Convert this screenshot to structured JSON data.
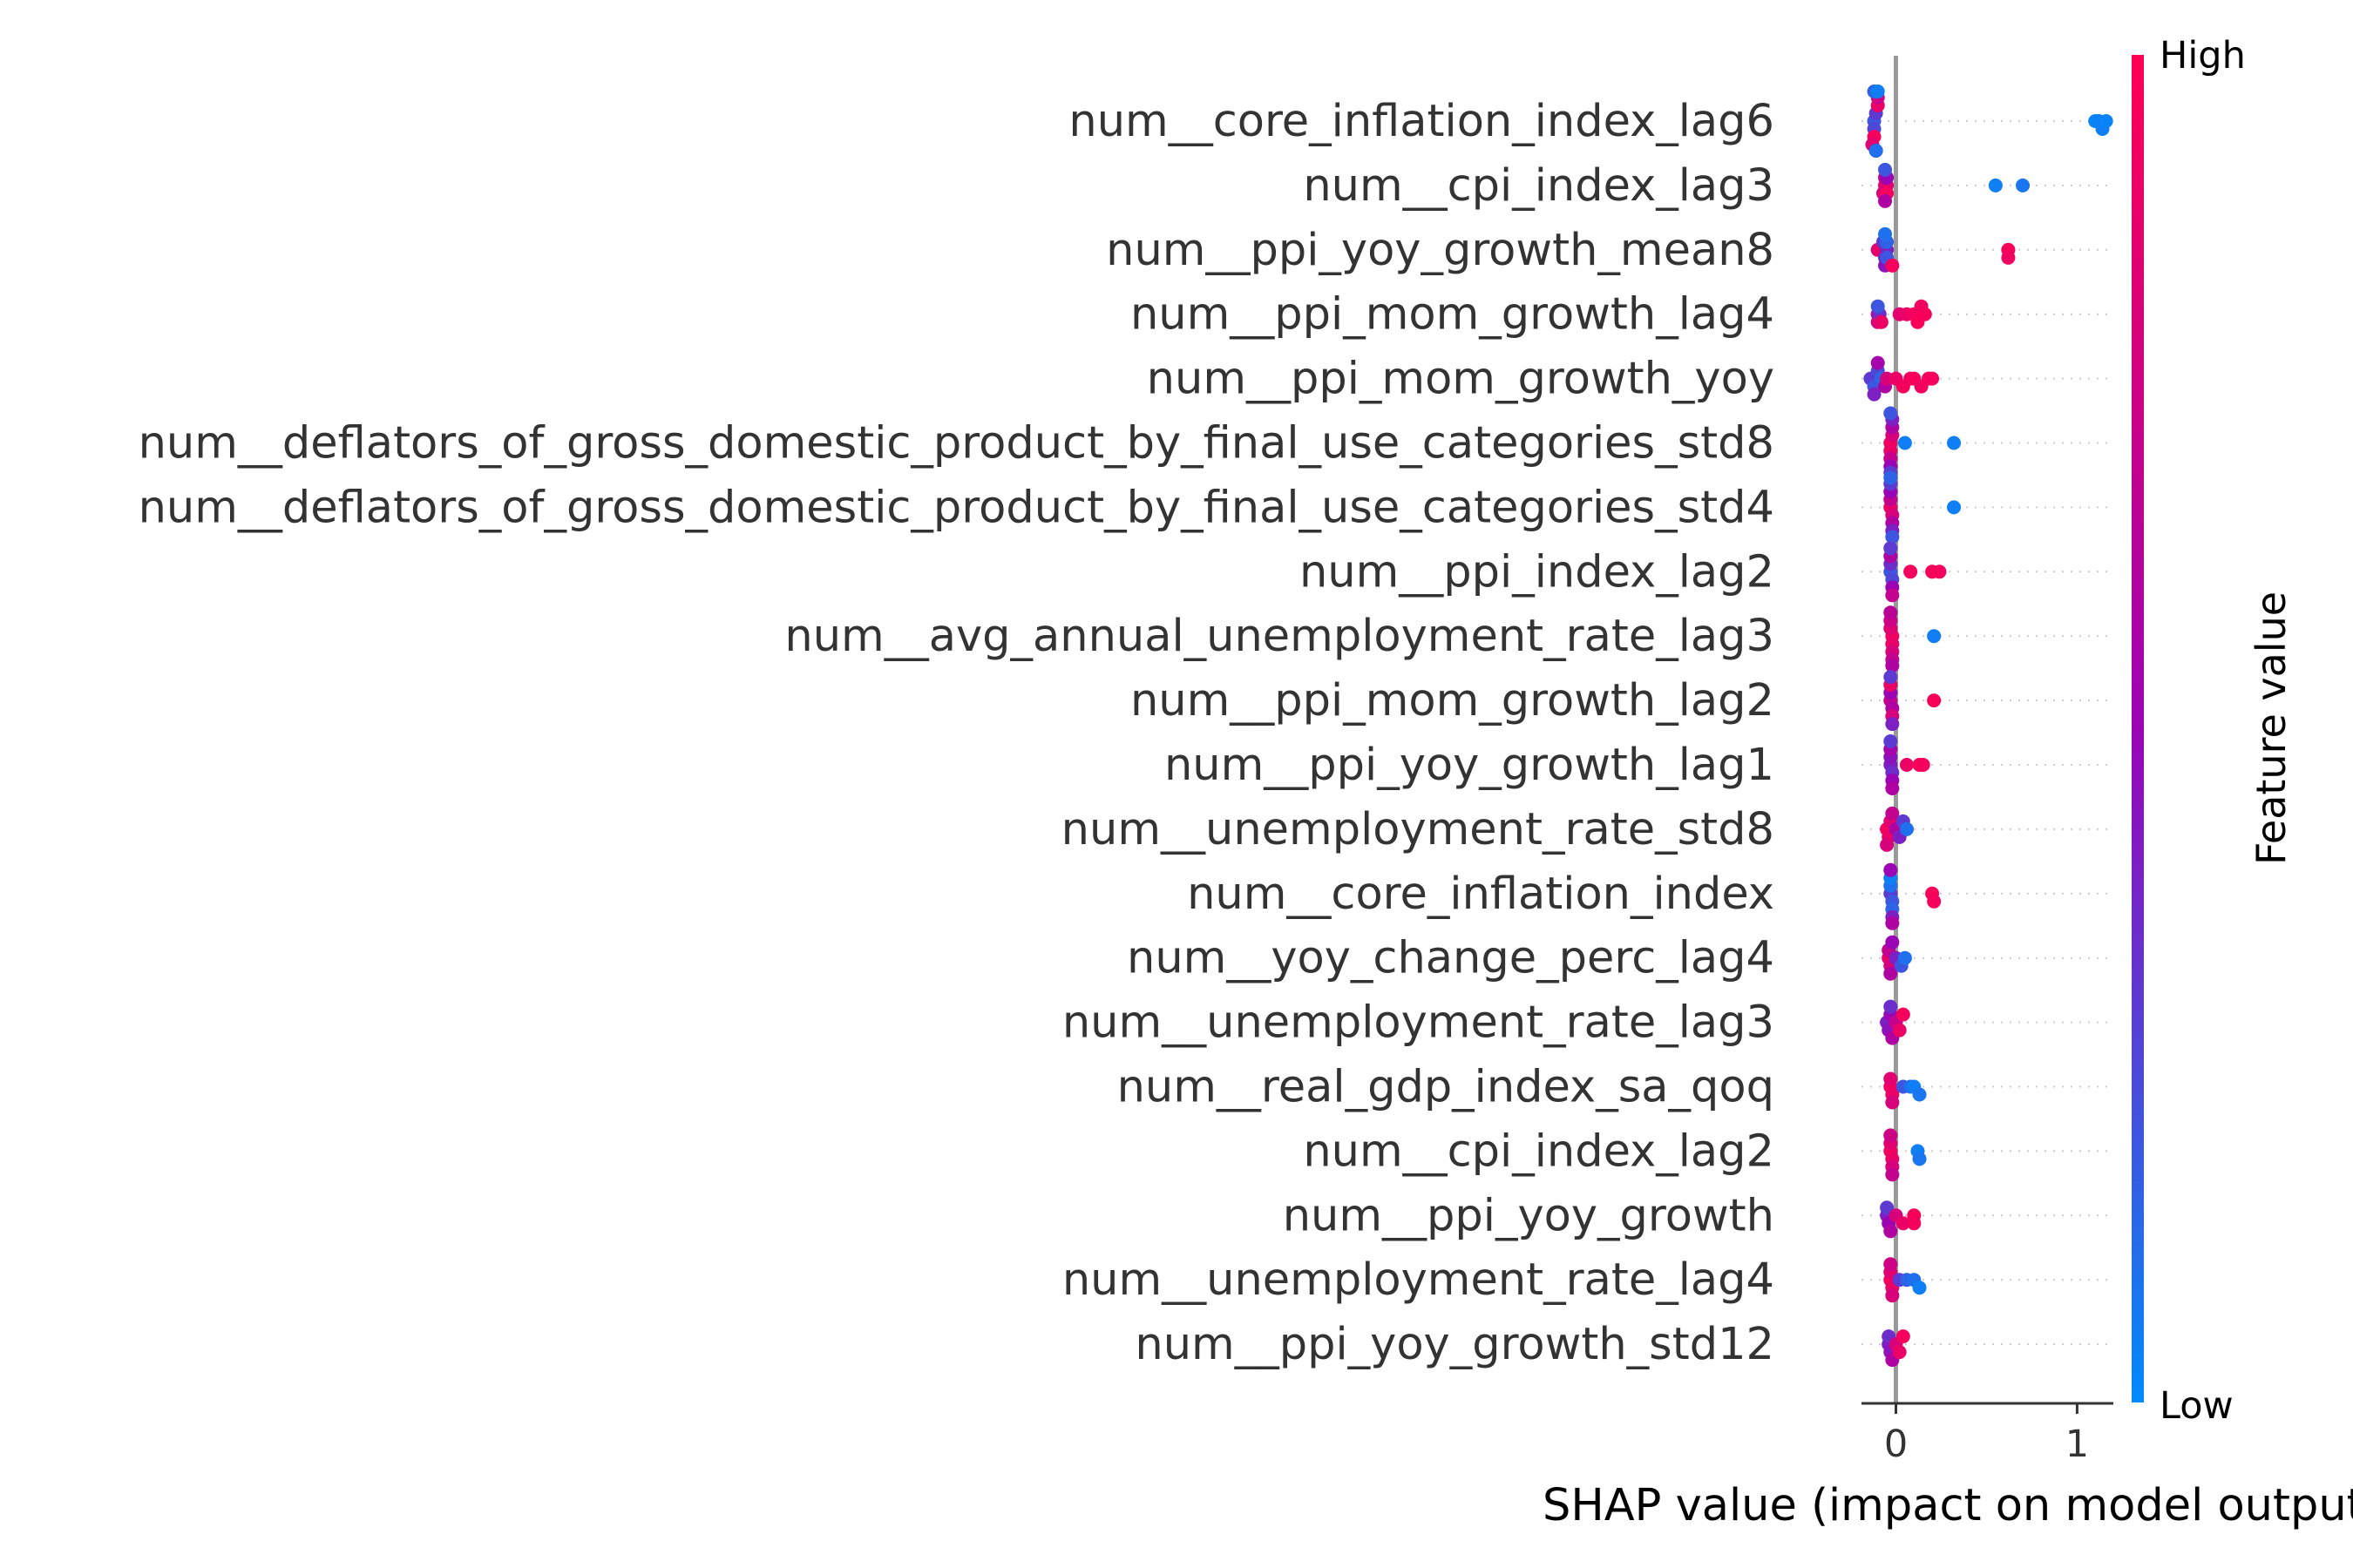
{
  "chart_data": {
    "type": "scatter",
    "subtype": "shap-beeswarm",
    "xlabel": "SHAP value (impact on model output)",
    "xlim": [
      -0.19,
      1.2
    ],
    "xticks": [
      0,
      1
    ],
    "grid": false,
    "colorbar": {
      "label": "Feature value",
      "high_label": "High",
      "low_label": "Low",
      "low_color": "#008bfb",
      "mid_color": "#9b04b5",
      "high_color": "#ff0052"
    },
    "features": [
      {
        "name": "num__core_inflation_index_lag6",
        "points": [
          [
            -0.12,
            0.2
          ],
          [
            -0.12,
            0.25
          ],
          [
            -0.11,
            0.3
          ],
          [
            -0.12,
            0.95
          ],
          [
            -0.1,
            0.9
          ],
          [
            -0.13,
            0.85
          ],
          [
            -0.1,
            0.75
          ],
          [
            -0.11,
            0.7
          ],
          [
            -0.12,
            0.15
          ],
          [
            -0.11,
            0.1
          ],
          [
            -0.1,
            0.05
          ],
          [
            1.1,
            0.02
          ],
          [
            1.12,
            0.04
          ],
          [
            1.14,
            0.05
          ],
          [
            1.16,
            0.03
          ]
        ]
      },
      {
        "name": "num__cpi_index_lag3",
        "points": [
          [
            -0.06,
            0.9
          ],
          [
            -0.05,
            0.85
          ],
          [
            -0.07,
            0.8
          ],
          [
            -0.06,
            0.75
          ],
          [
            -0.05,
            0.95
          ],
          [
            -0.06,
            0.6
          ],
          [
            -0.05,
            0.5
          ],
          [
            -0.06,
            0.2
          ],
          [
            0.55,
            0.05
          ],
          [
            0.7,
            0.08
          ]
        ]
      },
      {
        "name": "num__ppi_yoy_growth_mean8",
        "points": [
          [
            -0.1,
            0.85
          ],
          [
            -0.08,
            0.9
          ],
          [
            -0.06,
            0.35
          ],
          [
            -0.05,
            0.4
          ],
          [
            -0.07,
            0.3
          ],
          [
            -0.06,
            0.45
          ],
          [
            -0.05,
            0.2
          ],
          [
            -0.05,
            0.15
          ],
          [
            -0.06,
            0.1
          ],
          [
            -0.02,
            0.95
          ],
          [
            0.62,
            0.97
          ],
          [
            0.62,
            0.93
          ]
        ]
      },
      {
        "name": "num__ppi_mom_growth_lag4",
        "points": [
          [
            -0.1,
            0.7
          ],
          [
            -0.1,
            0.8
          ],
          [
            -0.09,
            0.35
          ],
          [
            -0.1,
            0.2
          ],
          [
            -0.08,
            0.9
          ],
          [
            0.02,
            0.85
          ],
          [
            0.06,
            0.9
          ],
          [
            0.1,
            0.95
          ],
          [
            0.12,
            0.97
          ],
          [
            0.14,
            0.93
          ],
          [
            0.16,
            0.96
          ]
        ]
      },
      {
        "name": "num__ppi_mom_growth_yoy",
        "points": [
          [
            -0.14,
            0.3
          ],
          [
            -0.12,
            0.2
          ],
          [
            -0.1,
            0.25
          ],
          [
            -0.08,
            0.15
          ],
          [
            -0.12,
            0.4
          ],
          [
            -0.06,
            0.6
          ],
          [
            -0.1,
            0.55
          ],
          [
            -0.05,
            0.8
          ],
          [
            0.0,
            0.9
          ],
          [
            0.04,
            0.95
          ],
          [
            0.08,
            0.92
          ],
          [
            0.1,
            0.97
          ],
          [
            0.14,
            0.94
          ],
          [
            0.18,
            0.96
          ],
          [
            0.2,
            0.95
          ]
        ]
      },
      {
        "name": "num__deflators_of_gross_domestic_product_by_final_use_categories_std8",
        "points": [
          [
            -0.03,
            0.95
          ],
          [
            -0.03,
            0.9
          ],
          [
            -0.02,
            0.8
          ],
          [
            -0.03,
            0.7
          ],
          [
            -0.02,
            0.6
          ],
          [
            -0.03,
            0.5
          ],
          [
            -0.02,
            0.4
          ],
          [
            -0.03,
            0.3
          ],
          [
            -0.03,
            0.2
          ],
          [
            0.05,
            0.05
          ],
          [
            0.32,
            0.05
          ]
        ]
      },
      {
        "name": "num__deflators_of_gross_domestic_product_by_final_use_categories_std4",
        "points": [
          [
            -0.03,
            0.9
          ],
          [
            -0.02,
            0.8
          ],
          [
            -0.03,
            0.7
          ],
          [
            -0.02,
            0.6
          ],
          [
            -0.03,
            0.5
          ],
          [
            -0.02,
            0.4
          ],
          [
            -0.03,
            0.3
          ],
          [
            -0.02,
            0.2
          ],
          [
            -0.03,
            0.15
          ],
          [
            0.32,
            0.05
          ]
        ]
      },
      {
        "name": "num__ppi_index_lag2",
        "points": [
          [
            -0.03,
            0.2
          ],
          [
            -0.02,
            0.25
          ],
          [
            -0.03,
            0.35
          ],
          [
            -0.02,
            0.5
          ],
          [
            -0.03,
            0.6
          ],
          [
            -0.02,
            0.7
          ],
          [
            -0.03,
            0.3
          ],
          [
            0.08,
            0.95
          ],
          [
            0.2,
            0.97
          ],
          [
            0.24,
            0.95
          ]
        ]
      },
      {
        "name": "num__avg_annual_unemployment_rate_lag3",
        "points": [
          [
            -0.02,
            0.95
          ],
          [
            -0.02,
            0.9
          ],
          [
            -0.03,
            0.85
          ],
          [
            -0.02,
            0.8
          ],
          [
            -0.03,
            0.75
          ],
          [
            -0.02,
            0.7
          ],
          [
            -0.03,
            0.65
          ],
          [
            -0.02,
            0.6
          ],
          [
            0.21,
            0.05
          ]
        ]
      },
      {
        "name": "num__ppi_mom_growth_lag2",
        "points": [
          [
            -0.03,
            0.7
          ],
          [
            -0.02,
            0.6
          ],
          [
            -0.03,
            0.5
          ],
          [
            -0.02,
            0.8
          ],
          [
            -0.03,
            0.9
          ],
          [
            -0.02,
            0.4
          ],
          [
            -0.03,
            0.3
          ],
          [
            0.21,
            0.97
          ]
        ]
      },
      {
        "name": "num__ppi_yoy_growth_lag1",
        "points": [
          [
            -0.03,
            0.4
          ],
          [
            -0.02,
            0.35
          ],
          [
            -0.03,
            0.45
          ],
          [
            -0.02,
            0.5
          ],
          [
            -0.03,
            0.55
          ],
          [
            -0.02,
            0.6
          ],
          [
            -0.03,
            0.3
          ],
          [
            0.06,
            0.9
          ],
          [
            0.13,
            0.97
          ],
          [
            0.15,
            0.95
          ]
        ]
      },
      {
        "name": "num__unemployment_rate_std8",
        "points": [
          [
            -0.05,
            0.95
          ],
          [
            -0.04,
            0.9
          ],
          [
            -0.03,
            0.85
          ],
          [
            -0.05,
            0.8
          ],
          [
            -0.02,
            0.7
          ],
          [
            0.0,
            0.6
          ],
          [
            0.02,
            0.4
          ],
          [
            0.04,
            0.3
          ],
          [
            0.06,
            0.1
          ]
        ]
      },
      {
        "name": "num__core_inflation_index",
        "points": [
          [
            -0.03,
            0.3
          ],
          [
            -0.02,
            0.2
          ],
          [
            -0.03,
            0.1
          ],
          [
            -0.02,
            0.15
          ],
          [
            -0.03,
            0.05
          ],
          [
            -0.02,
            0.4
          ],
          [
            -0.03,
            0.5
          ],
          [
            -0.02,
            0.6
          ],
          [
            0.2,
            0.97
          ],
          [
            0.21,
            0.95
          ]
        ]
      },
      {
        "name": "num__yoy_change_perc_lag4",
        "points": [
          [
            -0.04,
            0.9
          ],
          [
            -0.03,
            0.8
          ],
          [
            -0.04,
            0.7
          ],
          [
            -0.03,
            0.6
          ],
          [
            -0.02,
            0.5
          ],
          [
            0.0,
            0.4
          ],
          [
            0.03,
            0.2
          ],
          [
            0.05,
            0.1
          ]
        ]
      },
      {
        "name": "num__unemployment_rate_lag3",
        "points": [
          [
            -0.05,
            0.4
          ],
          [
            -0.04,
            0.45
          ],
          [
            -0.03,
            0.5
          ],
          [
            -0.02,
            0.6
          ],
          [
            -0.03,
            0.35
          ],
          [
            0.0,
            0.7
          ],
          [
            0.02,
            0.9
          ],
          [
            0.04,
            0.95
          ]
        ]
      },
      {
        "name": "num__real_gdp_index_sa_qoq",
        "points": [
          [
            -0.03,
            0.95
          ],
          [
            -0.02,
            0.9
          ],
          [
            -0.03,
            0.85
          ],
          [
            -0.02,
            0.8
          ],
          [
            0.04,
            0.2
          ],
          [
            0.08,
            0.1
          ],
          [
            0.1,
            0.05
          ],
          [
            0.13,
            0.08
          ]
        ]
      },
      {
        "name": "num__cpi_index_lag2",
        "points": [
          [
            -0.03,
            0.95
          ],
          [
            -0.02,
            0.9
          ],
          [
            -0.03,
            0.85
          ],
          [
            -0.02,
            0.8
          ],
          [
            -0.03,
            0.75
          ],
          [
            -0.02,
            0.7
          ],
          [
            0.12,
            0.05
          ],
          [
            0.13,
            0.08
          ]
        ]
      },
      {
        "name": "num__ppi_yoy_growth",
        "points": [
          [
            -0.05,
            0.4
          ],
          [
            -0.04,
            0.5
          ],
          [
            -0.05,
            0.3
          ],
          [
            -0.03,
            0.6
          ],
          [
            0.0,
            0.8
          ],
          [
            0.04,
            0.9
          ],
          [
            0.1,
            0.97
          ],
          [
            0.1,
            0.95
          ]
        ]
      },
      {
        "name": "num__unemployment_rate_lag4",
        "points": [
          [
            -0.03,
            0.95
          ],
          [
            -0.02,
            0.9
          ],
          [
            -0.03,
            0.85
          ],
          [
            -0.02,
            0.8
          ],
          [
            -0.03,
            0.75
          ],
          [
            0.02,
            0.3
          ],
          [
            0.06,
            0.15
          ],
          [
            0.1,
            0.1
          ],
          [
            0.13,
            0.05
          ]
        ]
      },
      {
        "name": "num__ppi_yoy_growth_std12",
        "points": [
          [
            -0.04,
            0.4
          ],
          [
            -0.03,
            0.45
          ],
          [
            -0.04,
            0.35
          ],
          [
            -0.02,
            0.6
          ],
          [
            0.0,
            0.8
          ],
          [
            0.02,
            0.9
          ],
          [
            0.04,
            0.95
          ]
        ]
      }
    ]
  }
}
